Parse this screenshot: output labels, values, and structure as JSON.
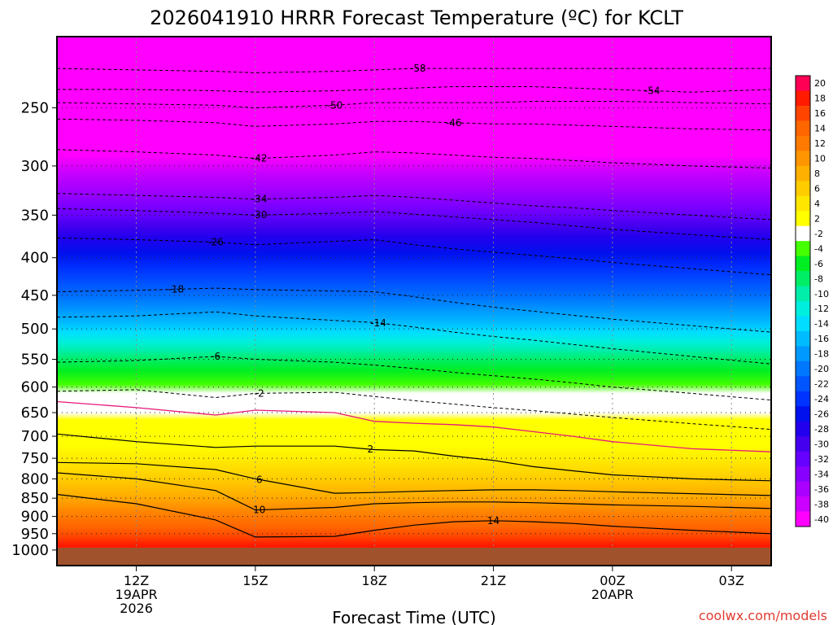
{
  "title": "2026041910 HRRR Forecast Temperature (ºC) for KCLT",
  "xlabel": "Forecast Time (UTC)",
  "watermark": "coolwx.com/models",
  "colors": {
    "ground": "#a0522d",
    "freezing_line": "#e6197a",
    "watermark": "#e03c31"
  },
  "chart_data": {
    "type": "heatmap",
    "title": "2026041910 HRRR Forecast Temperature (ºC) for KCLT",
    "xlabel": "Forecast Time (UTC)",
    "ylabel": "",
    "y_axis": {
      "scale": "log",
      "reversed": true,
      "units": "hPa",
      "range": [
        1050,
        200
      ],
      "ticks": [
        1000,
        950,
        900,
        850,
        800,
        750,
        700,
        650,
        600,
        550,
        500,
        450,
        400,
        350,
        300,
        250
      ]
    },
    "x_axis": {
      "units": "hours",
      "range": [
        10,
        28
      ],
      "ticks": [
        {
          "x": 12,
          "label": "12Z",
          "date": "19APR",
          "year": "2026"
        },
        {
          "x": 15,
          "label": "15Z",
          "date": "",
          "year": ""
        },
        {
          "x": 18,
          "label": "18Z",
          "date": "",
          "year": ""
        },
        {
          "x": 21,
          "label": "21Z",
          "date": "",
          "year": ""
        },
        {
          "x": 24,
          "label": "00Z",
          "date": "20APR",
          "year": ""
        },
        {
          "x": 27,
          "label": "03Z",
          "date": "",
          "year": ""
        }
      ]
    },
    "grid": true,
    "legend": "right colorbar",
    "colorbar": {
      "labels": [
        "20",
        "18",
        "16",
        "14",
        "12",
        "10",
        "8",
        "6",
        "4",
        "2",
        "-2",
        "-4",
        "-6",
        "-8",
        "-10",
        "-12",
        "-14",
        "-16",
        "-18",
        "-20",
        "-22",
        "-24",
        "-26",
        "-28",
        "-30",
        "-32",
        "-34",
        "-36",
        "-38",
        "-40"
      ],
      "colors": [
        "#ff0055",
        "#ff1a00",
        "#ff4400",
        "#ff6600",
        "#ff7a00",
        "#ff9500",
        "#ffb000",
        "#ffcc00",
        "#ffe600",
        "#ffff00",
        "#ffffff",
        "#44ff00",
        "#00ee22",
        "#00ee66",
        "#00eeaa",
        "#00eedd",
        "#00ddff",
        "#00bbff",
        "#0099ff",
        "#0077ff",
        "#0055ff",
        "#0033ff",
        "#0011ee",
        "#2200ee",
        "#4400ee",
        "#6600ff",
        "#8800ff",
        "#aa00ff",
        "#cc00ff",
        "#ff00ff"
      ]
    },
    "times": [
      10,
      12,
      14,
      15,
      17,
      18,
      19,
      20,
      21,
      22,
      23,
      24,
      26,
      28
    ],
    "isotherms": [
      {
        "value": -58,
        "label": "-58",
        "label_x": 19.1,
        "p": [
          221,
          222,
          223,
          224,
          223,
          222,
          221,
          221,
          221,
          221,
          221,
          221,
          221,
          221
        ]
      },
      {
        "value": -54,
        "label": "-54",
        "label_x": 25.0,
        "p": [
          236,
          236,
          237,
          238,
          237,
          236,
          235,
          234,
          234,
          234,
          235,
          236,
          238,
          236
        ]
      },
      {
        "value": -50,
        "label": "-50",
        "label_x": 17.0,
        "p": [
          246,
          247,
          248,
          250,
          248,
          246,
          246,
          246,
          246,
          245,
          245,
          245,
          246,
          247
        ]
      },
      {
        "value": -46,
        "label": "-46",
        "label_x": 20.0,
        "p": [
          259,
          260,
          262,
          265,
          263,
          261,
          261,
          262,
          263,
          263,
          264,
          265,
          267,
          268
        ]
      },
      {
        "value": -42,
        "label": "-42",
        "label_x": 15.1,
        "p": [
          285,
          287,
          290,
          293,
          290,
          287,
          288,
          290,
          292,
          293,
          295,
          297,
          300,
          302
        ]
      },
      {
        "value": -34,
        "label": "-34",
        "label_x": 15.1,
        "p": [
          327,
          329,
          331,
          333,
          331,
          329,
          331,
          334,
          337,
          340,
          342,
          345,
          350,
          355
        ]
      },
      {
        "value": -30,
        "label": "-30",
        "label_x": 15.1,
        "p": [
          343,
          345,
          348,
          350,
          348,
          346,
          349,
          352,
          355,
          358,
          362,
          366,
          372,
          378
        ]
      },
      {
        "value": -26,
        "label": "-26",
        "label_x": 14.0,
        "p": [
          376,
          378,
          381,
          384,
          380,
          378,
          384,
          389,
          393,
          397,
          401,
          406,
          414,
          422
        ]
      },
      {
        "value": -18,
        "label": "-18",
        "label_x": 13.0,
        "p": [
          445,
          443,
          440,
          442,
          444,
          445,
          452,
          460,
          467,
          473,
          479,
          485,
          495,
          505
        ]
      },
      {
        "value": -14,
        "label": "-14",
        "label_x": 18.1,
        "p": [
          482,
          480,
          474,
          480,
          487,
          490,
          497,
          505,
          512,
          518,
          525,
          532,
          545,
          558
        ]
      },
      {
        "value": -6,
        "label": "-6",
        "label_x": 14.0,
        "p": [
          555,
          552,
          545,
          550,
          555,
          560,
          566,
          573,
          579,
          585,
          592,
          600,
          612,
          625
        ]
      },
      {
        "value": -2,
        "label": "-2",
        "label_x": 15.1,
        "p": [
          608,
          605,
          620,
          612,
          610,
          618,
          626,
          633,
          640,
          646,
          653,
          660,
          673,
          685
        ]
      },
      {
        "value": 0,
        "label": "",
        "label_x": 0,
        "p": [
          628,
          640,
          655,
          645,
          650,
          668,
          672,
          675,
          680,
          690,
          700,
          712,
          728,
          735
        ]
      }
    ],
    "solid_lines": [
      {
        "value": 2,
        "label": "2",
        "label_x": 17.9,
        "p": [
          695,
          712,
          725,
          722,
          722,
          730,
          733,
          745,
          755,
          770,
          780,
          790,
          800,
          805
        ]
      },
      {
        "value": 6,
        "label": "6",
        "label_x": 15.1,
        "p": [
          760,
          763,
          777,
          800,
          837,
          835,
          832,
          830,
          828,
          828,
          830,
          833,
          838,
          843
        ]
      },
      {
        "value": 10,
        "label": "10",
        "label_x": 15.1,
        "p": [
          785,
          800,
          830,
          882,
          875,
          865,
          862,
          860,
          860,
          862,
          865,
          868,
          872,
          878
        ]
      },
      {
        "value": 14,
        "label": "14",
        "label_x": 21.0,
        "p": [
          840,
          865,
          910,
          960,
          958,
          940,
          925,
          915,
          912,
          915,
          920,
          928,
          940,
          950
        ]
      }
    ],
    "ground_level": 1000
  }
}
